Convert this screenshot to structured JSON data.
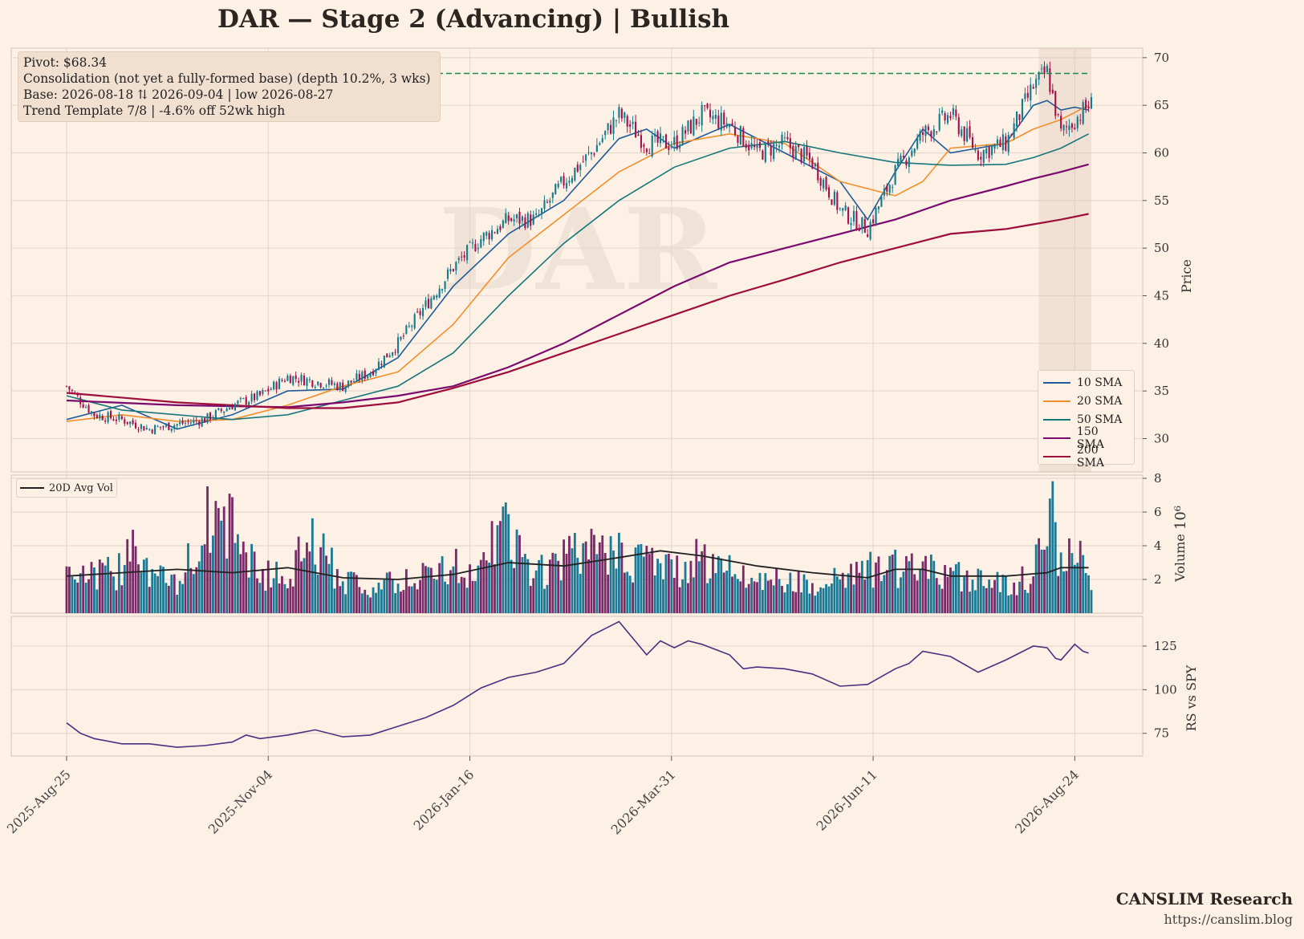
{
  "title": "DAR  —  Stage 2 (Advancing)  |  Bullish",
  "watermark": "DAR",
  "info": {
    "line1": "Pivot: $68.34",
    "line2": "Consolidation (not yet a fully-formed base)  (depth 10.2%, 3 wks)",
    "line3": "Base: 2026-08-18 ⇅ 2026-09-04  |  low 2026-08-27",
    "line4": "Trend Template 7/8  |  -4.6% off 52wk high"
  },
  "legend": [
    {
      "label": "10 SMA",
      "color": "#1f5c99"
    },
    {
      "label": "20 SMA",
      "color": "#f28e2b"
    },
    {
      "label": "50 SMA",
      "color": "#17767a"
    },
    {
      "label": "150 SMA",
      "color": "#7a0a6e"
    },
    {
      "label": "200 SMA",
      "color": "#9e0e3c"
    }
  ],
  "volume_legend": "20D Avg Vol",
  "brand": {
    "name": "CANSLIM Research",
    "url": "https://canslim.blog"
  },
  "chart_data": [
    {
      "type": "candlestick",
      "panel": "price",
      "ylabel": "Price",
      "ylim": [
        26.5,
        71
      ],
      "yticks": [
        30,
        35,
        40,
        45,
        50,
        55,
        60,
        65,
        70
      ],
      "xticks": [
        "2025-Aug-25",
        "2025-Nov-04",
        "2026-Jan-16",
        "2026-Mar-31",
        "2026-Jun-11",
        "2026-Aug-24"
      ],
      "pivot": 68.34,
      "grid": true,
      "legend_position": "lower-right",
      "colors": {
        "up": "#157a8c",
        "down": "#a3124a"
      },
      "close_anchors": [
        [
          0,
          35.5
        ],
        [
          10,
          32.5
        ],
        [
          20,
          32
        ],
        [
          30,
          31
        ],
        [
          40,
          31.5
        ],
        [
          50,
          32
        ],
        [
          60,
          33.5
        ],
        [
          70,
          34.5
        ],
        [
          80,
          36.5
        ],
        [
          90,
          36
        ],
        [
          100,
          35.5
        ],
        [
          110,
          37
        ],
        [
          120,
          40
        ],
        [
          130,
          44
        ],
        [
          140,
          48
        ],
        [
          150,
          51
        ],
        [
          160,
          53
        ],
        [
          170,
          53
        ],
        [
          180,
          57
        ],
        [
          190,
          60
        ],
        [
          200,
          64
        ],
        [
          210,
          61
        ],
        [
          220,
          61
        ],
        [
          230,
          64
        ],
        [
          240,
          63
        ],
        [
          250,
          60
        ],
        [
          260,
          61
        ],
        [
          270,
          59
        ],
        [
          280,
          54
        ],
        [
          290,
          52
        ],
        [
          300,
          58
        ],
        [
          310,
          62
        ],
        [
          320,
          64
        ],
        [
          330,
          60
        ],
        [
          340,
          61
        ],
        [
          350,
          67
        ],
        [
          355,
          68.5
        ],
        [
          360,
          62
        ],
        [
          365,
          63.5
        ],
        [
          370,
          65
        ]
      ],
      "approx_bars": 372
    },
    {
      "type": "line",
      "panel": "price",
      "series": [
        {
          "name": "10 SMA",
          "x": [
            0,
            20,
            40,
            60,
            80,
            100,
            120,
            140,
            160,
            180,
            200,
            210,
            220,
            240,
            260,
            280,
            290,
            300,
            310,
            320,
            340,
            350,
            355,
            360,
            365,
            370
          ],
          "values": [
            32,
            33.5,
            31,
            32.5,
            35,
            35.2,
            38.5,
            46,
            51.5,
            55,
            61.5,
            62.5,
            60.5,
            63,
            60,
            57,
            53,
            58,
            62.5,
            60,
            61,
            65,
            65.5,
            64.5,
            64.8,
            64.5
          ]
        },
        {
          "name": "20 SMA",
          "x": [
            0,
            20,
            40,
            60,
            80,
            100,
            120,
            140,
            160,
            180,
            200,
            220,
            240,
            260,
            280,
            300,
            310,
            320,
            340,
            350,
            360,
            370
          ],
          "values": [
            31.8,
            32.5,
            31.8,
            32,
            33.5,
            35.5,
            37,
            42,
            49,
            53.5,
            58,
            61,
            62,
            61,
            57,
            55.5,
            57,
            60.5,
            61,
            62.5,
            63.5,
            65
          ]
        },
        {
          "name": "50 SMA",
          "x": [
            0,
            20,
            40,
            60,
            80,
            100,
            120,
            140,
            160,
            180,
            200,
            220,
            240,
            260,
            280,
            300,
            320,
            340,
            350,
            360,
            370
          ],
          "values": [
            34.5,
            33,
            32.5,
            32,
            32.5,
            34,
            35.5,
            39,
            45,
            50.5,
            55,
            58.5,
            60.5,
            61.2,
            60,
            59,
            58.7,
            58.8,
            59.5,
            60.5,
            62
          ]
        },
        {
          "name": "150 SMA",
          "x": [
            0,
            40,
            80,
            100,
            120,
            140,
            160,
            180,
            200,
            220,
            240,
            260,
            280,
            300,
            320,
            340,
            350,
            360,
            370
          ],
          "values": [
            34,
            33.5,
            33.3,
            33.8,
            34.5,
            35.5,
            37.5,
            40,
            43,
            46,
            48.5,
            50,
            51.5,
            53,
            55,
            56.5,
            57.3,
            58,
            58.8
          ]
        },
        {
          "name": "200 SMA",
          "x": [
            0,
            40,
            80,
            100,
            120,
            140,
            160,
            180,
            200,
            220,
            240,
            260,
            280,
            300,
            320,
            340,
            350,
            360,
            370
          ],
          "values": [
            34.8,
            33.8,
            33.2,
            33.2,
            33.8,
            35.3,
            37,
            39,
            41,
            43,
            45,
            46.7,
            48.5,
            50,
            51.5,
            52,
            52.5,
            53,
            53.6
          ]
        }
      ]
    },
    {
      "type": "bar",
      "panel": "volume",
      "ylabel": "Volume",
      "ylabel_exponent": "10⁶",
      "ylim": [
        0,
        8
      ],
      "yticks": [
        2,
        4,
        6,
        8
      ],
      "vol_anchors": [
        [
          0,
          2.8
        ],
        [
          10,
          2.2
        ],
        [
          20,
          2.5
        ],
        [
          22,
          5.8
        ],
        [
          30,
          2.5
        ],
        [
          40,
          1.5
        ],
        [
          50,
          5.4
        ],
        [
          60,
          5.1
        ],
        [
          70,
          2.2
        ],
        [
          80,
          2.3
        ],
        [
          88,
          4.1
        ],
        [
          100,
          2.1
        ],
        [
          110,
          1.5
        ],
        [
          120,
          1.8
        ],
        [
          130,
          2.2
        ],
        [
          140,
          2.8
        ],
        [
          150,
          2.3
        ],
        [
          158,
          5.4
        ],
        [
          160,
          4.4
        ],
        [
          170,
          2.2
        ],
        [
          180,
          3.2
        ],
        [
          190,
          3.6
        ],
        [
          200,
          3.4
        ],
        [
          210,
          3.2
        ],
        [
          220,
          2.5
        ],
        [
          230,
          3.2
        ],
        [
          240,
          2.6
        ],
        [
          250,
          2.1
        ],
        [
          260,
          1.8
        ],
        [
          270,
          1.8
        ],
        [
          280,
          2.2
        ],
        [
          290,
          2.6
        ],
        [
          300,
          2.6
        ],
        [
          310,
          2.5
        ],
        [
          320,
          2.2
        ],
        [
          330,
          2.2
        ],
        [
          340,
          1.8
        ],
        [
          350,
          2.1
        ],
        [
          356,
          7.4
        ],
        [
          360,
          2.5
        ],
        [
          365,
          4.2
        ],
        [
          370,
          1.8
        ]
      ],
      "avg20": {
        "x": [
          0,
          20,
          40,
          60,
          80,
          100,
          120,
          140,
          160,
          180,
          200,
          215,
          230,
          250,
          270,
          290,
          300,
          310,
          320,
          340,
          355,
          360,
          370
        ],
        "values": [
          2.2,
          2.4,
          2.6,
          2.4,
          2.7,
          2.1,
          2,
          2.3,
          3,
          2.8,
          3.3,
          3.7,
          3.4,
          2.8,
          2.4,
          2.1,
          2.6,
          2.6,
          2.2,
          2.2,
          2.4,
          2.7,
          2.7
        ]
      }
    },
    {
      "type": "line",
      "panel": "rs",
      "ylabel": "RS vs SPY",
      "ylim": [
        62,
        142
      ],
      "yticks": [
        75,
        100,
        125
      ],
      "series": [
        {
          "name": "RS vs SPY",
          "x": [
            0,
            5,
            10,
            20,
            30,
            40,
            50,
            60,
            65,
            70,
            80,
            90,
            100,
            110,
            120,
            130,
            140,
            150,
            160,
            170,
            180,
            190,
            200,
            210,
            215,
            220,
            225,
            230,
            240,
            245,
            250,
            260,
            270,
            280,
            290,
            300,
            305,
            310,
            320,
            330,
            340,
            350,
            355,
            358,
            360,
            365,
            368,
            370
          ],
          "values": [
            81,
            75,
            72,
            69,
            69,
            67,
            68,
            70,
            74,
            72,
            74,
            77,
            73,
            74,
            79,
            84,
            91,
            101,
            107,
            110,
            115,
            131,
            139,
            120,
            128,
            124,
            128,
            126,
            120,
            112,
            113,
            112,
            109,
            102,
            103,
            112,
            115,
            122,
            119,
            110,
            117,
            125,
            124,
            118,
            117,
            126,
            122,
            121
          ]
        }
      ]
    }
  ]
}
